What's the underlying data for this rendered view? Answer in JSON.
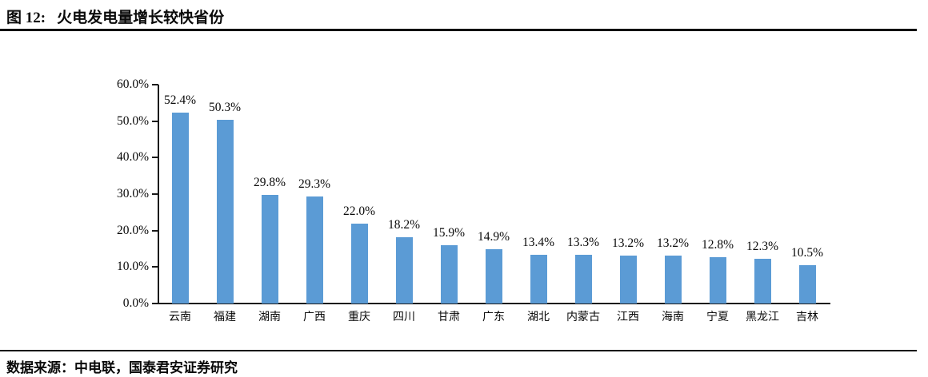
{
  "header": {
    "figure_label": "图 12:",
    "title": "火电发电量增长较快省份"
  },
  "chart_data": {
    "type": "bar",
    "title": "火电发电量增长较快省份",
    "categories": [
      "云南",
      "福建",
      "湖南",
      "广西",
      "重庆",
      "四川",
      "甘肃",
      "广东",
      "湖北",
      "内蒙古",
      "江西",
      "海南",
      "宁夏",
      "黑龙江",
      "吉林"
    ],
    "values": [
      52.4,
      50.3,
      29.8,
      29.3,
      22.0,
      18.2,
      15.9,
      14.9,
      13.4,
      13.3,
      13.2,
      13.2,
      12.8,
      12.3,
      10.5
    ],
    "value_labels": [
      "52.4%",
      "50.3%",
      "29.8%",
      "29.3%",
      "22.0%",
      "18.2%",
      "15.9%",
      "14.9%",
      "13.4%",
      "13.3%",
      "13.2%",
      "13.2%",
      "12.8%",
      "12.3%",
      "10.5%"
    ],
    "xlabel": "",
    "ylabel": "",
    "ylim": [
      0,
      60
    ],
    "yticks": [
      {
        "value": 60,
        "label": "60.0%"
      },
      {
        "value": 50,
        "label": "50.0%"
      },
      {
        "value": 40,
        "label": "40.0%"
      },
      {
        "value": 30,
        "label": "30.0%"
      },
      {
        "value": 20,
        "label": "20.0%"
      },
      {
        "value": 10,
        "label": "10.0%"
      },
      {
        "value": 0,
        "label": "0.0%"
      }
    ],
    "grid": false,
    "legend": null,
    "bar_color": "#5B9BD5",
    "axis_color": "#1a1a1a",
    "label_color": "#0a0a0a"
  },
  "footer": {
    "source": "数据来源：中电联，国泰君安证券研究"
  }
}
